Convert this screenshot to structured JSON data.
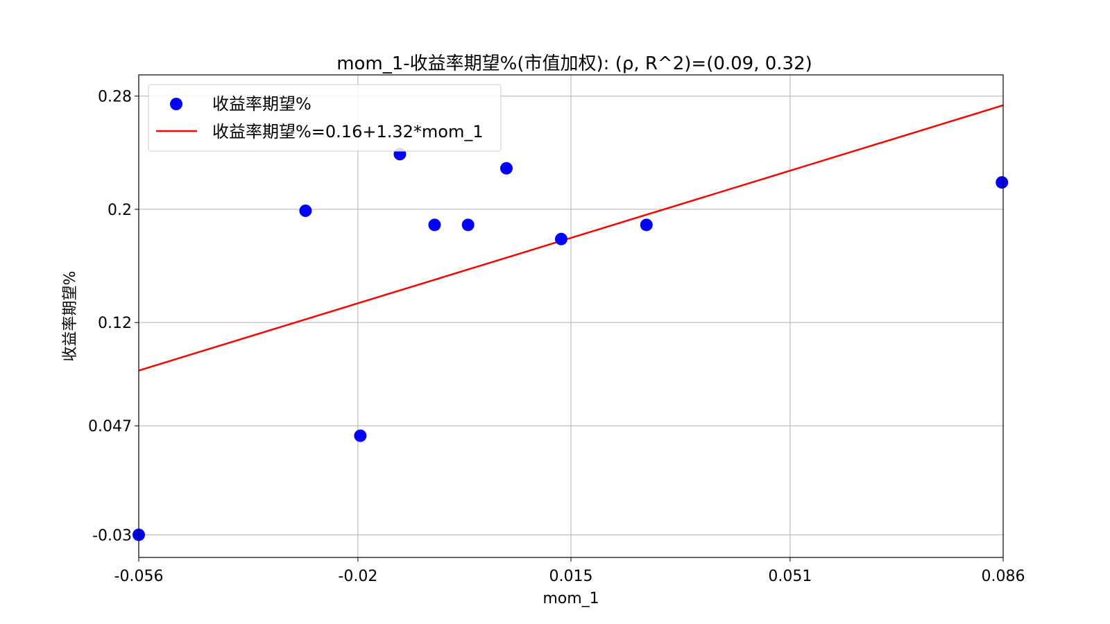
{
  "chart_data": {
    "type": "scatter",
    "title": "mom_1-收益率期望%(市值加权): (ρ, R^2)=(0.09, 0.32)",
    "xlabel": "mom_1",
    "ylabel": "收益率期望%",
    "xlim": [
      -0.056,
      0.086
    ],
    "ylim": [
      -0.046,
      0.295
    ],
    "grid": true,
    "legend_position": "top-left",
    "x_ticks": [
      -0.056,
      -0.02,
      0.015,
      0.051,
      0.086
    ],
    "x_tick_labels": [
      "-0.056",
      "-0.02",
      "0.015",
      "0.051",
      "0.086"
    ],
    "y_ticks": [
      -0.03,
      0.047,
      0.12,
      0.2,
      0.28
    ],
    "y_tick_labels": [
      "-0.03",
      "0.047",
      "0.12",
      "0.2",
      "0.28"
    ],
    "series": [
      {
        "name": "收益率期望%",
        "kind": "scatter",
        "color": "#0000ff",
        "points": [
          {
            "x": -0.056,
            "y": -0.03
          },
          {
            "x": -0.0286,
            "y": 0.199
          },
          {
            "x": -0.0196,
            "y": 0.04
          },
          {
            "x": -0.0131,
            "y": 0.239
          },
          {
            "x": -0.0074,
            "y": 0.189
          },
          {
            "x": -0.0019,
            "y": 0.189
          },
          {
            "x": 0.0044,
            "y": 0.229
          },
          {
            "x": 0.0134,
            "y": 0.179
          },
          {
            "x": 0.0274,
            "y": 0.189
          },
          {
            "x": 0.0858,
            "y": 0.219
          }
        ]
      },
      {
        "name": "收益率期望%=0.16+1.32*mom_1",
        "kind": "line",
        "color": "#ff0000",
        "intercept": 0.16,
        "slope": 1.32
      }
    ]
  }
}
